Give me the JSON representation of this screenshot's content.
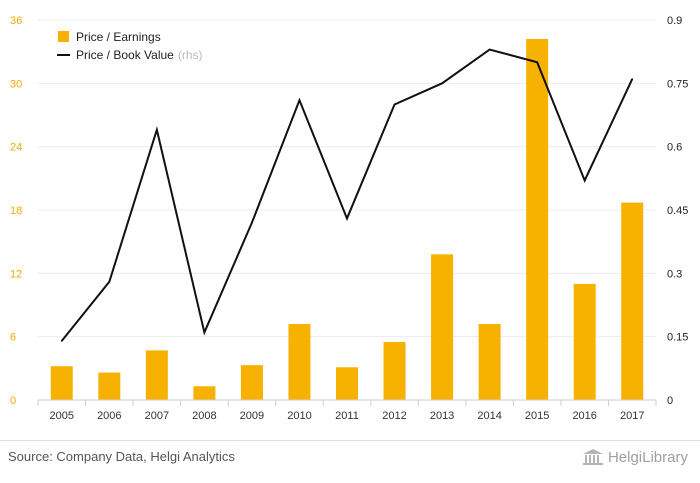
{
  "chart_data": {
    "type": "bar+line",
    "categories": [
      "2005",
      "2006",
      "2007",
      "2008",
      "2009",
      "2010",
      "2011",
      "2012",
      "2013",
      "2014",
      "2015",
      "2016",
      "2017"
    ],
    "series": [
      {
        "name": "Price / Earnings",
        "type": "bar",
        "axis": "left",
        "color": "#f7b100",
        "values": [
          3.2,
          2.6,
          4.7,
          1.3,
          3.3,
          7.2,
          3.1,
          5.5,
          13.8,
          7.2,
          34.2,
          11.0,
          18.7
        ]
      },
      {
        "name": "Price / Book Value",
        "name_suffix": "(rhs)",
        "type": "line",
        "axis": "right",
        "color": "#111111",
        "values": [
          0.14,
          0.28,
          0.64,
          0.16,
          0.42,
          0.71,
          0.43,
          0.7,
          0.75,
          0.83,
          0.8,
          0.52,
          0.76
        ]
      }
    ],
    "left_axis": {
      "min": 0,
      "max": 36,
      "ticks": [
        "0",
        "6",
        "12",
        "18",
        "24",
        "30",
        "36"
      ],
      "color": "#f2a900"
    },
    "right_axis": {
      "min": 0,
      "max": 0.9,
      "ticks": [
        "0",
        "0.15",
        "0.3",
        "0.45",
        "0.6",
        "0.75",
        "0.9"
      ]
    },
    "grid": true,
    "legend_position": "top-left"
  },
  "footer": {
    "source": "Source: Company Data, Helgi Analytics",
    "logo_text": "HelgiLibrary",
    "logo_icon": "library-building-icon"
  }
}
